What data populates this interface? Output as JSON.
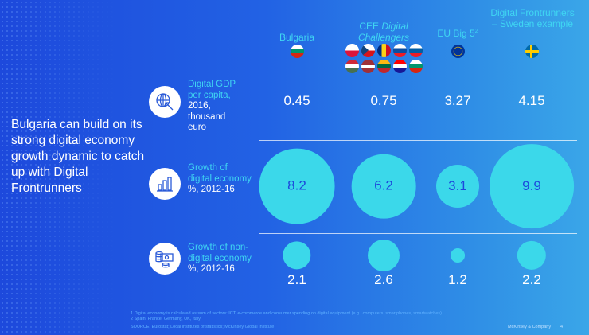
{
  "headline": "Bulgaria can build on its strong digital economy growth dynamic to catch up with Digital Frontrunners",
  "columns": [
    {
      "label": "Bulgaria",
      "flags": [
        "bulgaria"
      ]
    },
    {
      "label_plain": "CEE ",
      "label_italic": "Digital Challengers",
      "flags": [
        "poland",
        "czechia",
        "romania",
        "slovakia",
        "slovenia",
        "hungary",
        "latvia",
        "lithuania",
        "croatia",
        "bulgaria"
      ]
    },
    {
      "label": "EU Big 5",
      "sup": "2",
      "flags": [
        "eu"
      ]
    },
    {
      "label": "Digital Frontrunners – Sweden example",
      "flags": [
        "sweden"
      ]
    }
  ],
  "rows": [
    {
      "label_cyan": "Digital GDP per capita,",
      "label_white": "2016, thousand euro",
      "icon": "globe-cursor-icon",
      "values": [
        "0.45",
        "0.75",
        "3.27",
        "4.15"
      ]
    },
    {
      "label_cyan": "Growth of digital economy",
      "label_white": "%, 2012-16",
      "icon": "bar-chart-icon",
      "values": [
        "8.2",
        "6.2",
        "3.1",
        "9.9"
      ],
      "nums": [
        8.2,
        6.2,
        3.1,
        9.9
      ]
    },
    {
      "label_cyan": "Growth of non-digital economy",
      "label_white": "%, 2012-16",
      "icon": "money-coins-icon",
      "values": [
        "2.1",
        "2.6",
        "1.2",
        "2.2"
      ],
      "nums": [
        2.1,
        2.6,
        1.2,
        2.2
      ]
    }
  ],
  "footnotes": {
    "note1": "1 Digital economy is calculated as sum of sectors: ICT, e-commerce and consumer spending on digital equipment (e.g., computers, smartphones, smartwatches)",
    "note2": "2 Spain, France, Germany, UK, Italy",
    "source": "SOURCE: Eurostat; Local institutes of statistics; McKinsey Global Institute",
    "brand": "McKinsey & Company",
    "page": "4"
  },
  "colors": {
    "accent": "#3bd8ea",
    "bg_left": "#1d49dc",
    "bg_right": "#3aa6e8"
  }
}
